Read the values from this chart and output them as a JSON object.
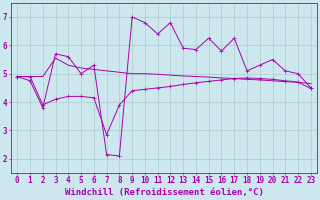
{
  "background_color": "#cce8ee",
  "grid_color": "#aacccc",
  "line_color": "#aa00aa",
  "xlabel": "Windchill (Refroidissement éolien,°C)",
  "xlabel_fontsize": 6.5,
  "tick_fontsize": 5.5,
  "xlim": [
    -0.5,
    23.5
  ],
  "ylim": [
    1.5,
    7.5
  ],
  "yticks": [
    2,
    3,
    4,
    5,
    6,
    7
  ],
  "xticks": [
    0,
    1,
    2,
    3,
    4,
    5,
    6,
    7,
    8,
    9,
    10,
    11,
    12,
    13,
    14,
    15,
    16,
    17,
    18,
    19,
    20,
    21,
    22,
    23
  ],
  "series1_x": [
    0,
    1,
    2,
    3,
    4,
    5,
    6,
    7,
    8,
    9,
    10,
    11,
    12,
    13,
    14,
    15,
    16,
    17,
    18,
    19,
    20,
    21,
    22,
    23
  ],
  "series1_y": [
    4.9,
    4.75,
    3.8,
    5.7,
    5.6,
    5.0,
    5.3,
    2.15,
    2.1,
    7.0,
    6.8,
    6.4,
    6.8,
    5.9,
    5.85,
    6.25,
    5.8,
    6.25,
    5.1,
    5.3,
    5.5,
    5.1,
    5.0,
    4.5
  ],
  "series2_x": [
    0,
    1,
    2,
    3,
    4,
    5,
    6,
    7,
    8,
    9,
    10,
    11,
    12,
    13,
    14,
    15,
    16,
    17,
    18,
    19,
    20,
    21,
    22,
    23
  ],
  "series2_y": [
    4.9,
    4.9,
    4.9,
    5.55,
    5.3,
    5.2,
    5.15,
    5.1,
    5.05,
    5.0,
    5.0,
    4.98,
    4.95,
    4.92,
    4.9,
    4.88,
    4.85,
    4.83,
    4.8,
    4.78,
    4.75,
    4.72,
    4.7,
    4.65
  ],
  "series3_x": [
    0,
    1,
    2,
    3,
    4,
    5,
    6,
    7,
    8,
    9,
    10,
    11,
    12,
    13,
    14,
    15,
    16,
    17,
    18,
    19,
    20,
    21,
    22,
    23
  ],
  "series3_y": [
    4.9,
    4.9,
    3.9,
    4.1,
    4.2,
    4.2,
    4.15,
    2.85,
    3.9,
    4.4,
    4.45,
    4.5,
    4.55,
    4.62,
    4.68,
    4.73,
    4.78,
    4.83,
    4.85,
    4.83,
    4.8,
    4.75,
    4.7,
    4.48
  ]
}
